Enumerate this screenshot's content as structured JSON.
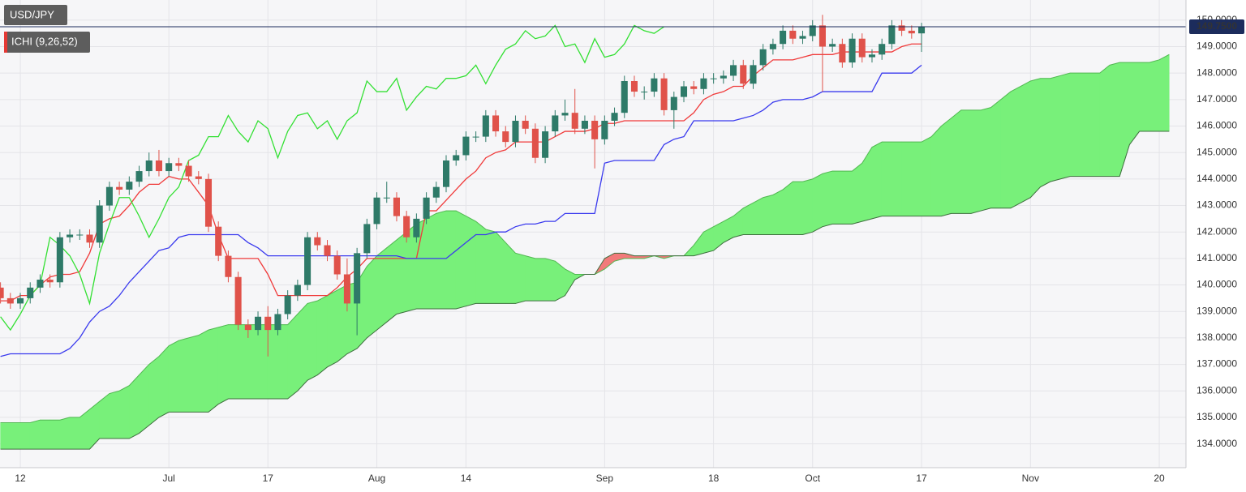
{
  "chart_data": {
    "type": "candlestick",
    "symbol": "USD/JPY",
    "indicator": "ICHI (9,26,52)",
    "categories": [
      null,
      null,
      "12",
      null,
      null,
      null,
      null,
      null,
      null,
      null,
      null,
      null,
      null,
      null,
      null,
      null,
      null,
      "Jul",
      null,
      null,
      null,
      null,
      null,
      null,
      null,
      null,
      null,
      "17",
      null,
      null,
      null,
      null,
      null,
      null,
      null,
      null,
      null,
      null,
      "Aug",
      null,
      null,
      null,
      null,
      null,
      null,
      null,
      null,
      "14",
      null,
      null,
      null,
      null,
      null,
      null,
      null,
      null,
      null,
      null,
      null,
      null,
      null,
      "Sep",
      null,
      null,
      null,
      null,
      null,
      null,
      null,
      null,
      null,
      null,
      "18",
      null,
      null,
      null,
      null,
      null,
      null,
      null,
      null,
      null,
      "Oct",
      null,
      null,
      null,
      null,
      null,
      null,
      null,
      null,
      null,
      null,
      "17",
      null,
      null,
      null,
      null,
      null,
      null,
      null,
      null,
      null,
      null,
      "Nov",
      null,
      null,
      null,
      null,
      null,
      null,
      null,
      null,
      null,
      null,
      null,
      null,
      "20",
      null
    ],
    "open": [
      139.9,
      139.5,
      139.3,
      139.5,
      139.9,
      140.2,
      140.1,
      141.8,
      141.9,
      141.9,
      141.6,
      143.0,
      143.7,
      143.6,
      143.9,
      144.3,
      144.7,
      144.3,
      144.6,
      144.5,
      144.1,
      144.0,
      142.2,
      141.1,
      140.3,
      138.5,
      138.3,
      138.8,
      138.3,
      138.9,
      139.6,
      140.0,
      141.8,
      141.5,
      141.1,
      140.4,
      139.3,
      141.2,
      142.3,
      143.3,
      143.3,
      142.6,
      141.8,
      142.5,
      143.3,
      143.7,
      144.7,
      144.9,
      145.6,
      145.6,
      146.4,
      145.8,
      145.4,
      146.2,
      145.9,
      144.8,
      145.8,
      146.4,
      146.5,
      145.9,
      146.2,
      145.5,
      146.2,
      146.5,
      147.7,
      147.3,
      147.3,
      147.8,
      146.6,
      147.1,
      147.5,
      147.4,
      147.8,
      147.8,
      147.9,
      148.3,
      147.6,
      148.3,
      148.9,
      149.1,
      149.6,
      149.3,
      149.4,
      149.8,
      149.0,
      149.1,
      148.4,
      149.3,
      148.6,
      148.7,
      149.1,
      149.8,
      149.6,
      149.5,
      null,
      null,
      null,
      null,
      null,
      null,
      null,
      null,
      null,
      null,
      null,
      null,
      null,
      null,
      null,
      null,
      null,
      null,
      null,
      null,
      null,
      null,
      null,
      null,
      null
    ],
    "high": [
      140.1,
      139.7,
      139.7,
      140.1,
      140.4,
      140.4,
      142.0,
      142.1,
      142.1,
      142.1,
      143.2,
      143.9,
      143.9,
      144.1,
      144.5,
      145.0,
      145.1,
      144.8,
      144.8,
      144.7,
      144.3,
      144.2,
      142.4,
      141.3,
      140.5,
      138.7,
      139.0,
      139.2,
      139.1,
      139.8,
      140.2,
      142.0,
      142.0,
      141.7,
      141.3,
      141.0,
      141.4,
      142.5,
      143.5,
      143.9,
      143.5,
      142.8,
      142.7,
      143.5,
      143.9,
      144.9,
      145.1,
      145.8,
      145.8,
      146.6,
      146.6,
      146.0,
      146.4,
      146.4,
      146.1,
      146.0,
      146.6,
      147.0,
      147.4,
      146.4,
      146.4,
      146.4,
      146.7,
      147.9,
      147.9,
      147.5,
      148.0,
      148.0,
      147.3,
      147.7,
      147.7,
      148.0,
      148.0,
      148.1,
      148.5,
      148.5,
      148.5,
      149.1,
      149.3,
      149.8,
      149.8,
      149.6,
      150.0,
      150.2,
      149.3,
      149.3,
      149.5,
      149.5,
      148.9,
      149.3,
      150.0,
      150.0,
      149.8,
      149.9,
      null,
      null,
      null,
      null,
      null,
      null,
      null,
      null,
      null,
      null,
      null,
      null,
      null,
      null,
      null,
      null,
      null,
      null,
      null,
      null,
      null,
      null,
      null,
      null,
      null
    ],
    "low": [
      139.3,
      139.1,
      139.1,
      139.3,
      139.7,
      139.9,
      139.9,
      141.6,
      141.7,
      141.4,
      141.4,
      142.8,
      143.4,
      143.4,
      143.7,
      144.1,
      144.1,
      144.1,
      144.3,
      143.9,
      143.8,
      142.0,
      140.9,
      140.1,
      138.3,
      138.0,
      138.1,
      137.3,
      138.1,
      138.7,
      139.4,
      139.8,
      141.3,
      140.9,
      140.2,
      139.0,
      138.1,
      141.0,
      142.1,
      143.1,
      142.4,
      141.6,
      141.6,
      142.3,
      143.1,
      143.5,
      144.5,
      144.7,
      145.4,
      145.4,
      145.6,
      145.2,
      145.2,
      145.7,
      144.6,
      144.6,
      145.6,
      146.2,
      145.7,
      145.7,
      144.4,
      145.3,
      146.0,
      146.3,
      147.1,
      147.0,
      147.1,
      146.4,
      145.9,
      146.9,
      147.2,
      147.2,
      147.6,
      147.6,
      147.7,
      147.4,
      147.4,
      148.1,
      148.7,
      148.9,
      149.1,
      149.1,
      149.2,
      147.3,
      148.8,
      148.2,
      148.2,
      148.4,
      148.4,
      148.5,
      148.9,
      149.4,
      149.3,
      148.8,
      null,
      null,
      null,
      null,
      null,
      null,
      null,
      null,
      null,
      null,
      null,
      null,
      null,
      null,
      null,
      null,
      null,
      null,
      null,
      null,
      null,
      null,
      null,
      null,
      null
    ],
    "close": [
      139.5,
      139.3,
      139.5,
      139.9,
      140.2,
      140.1,
      141.8,
      141.9,
      141.9,
      141.6,
      143.0,
      143.7,
      143.6,
      143.9,
      144.3,
      144.7,
      144.3,
      144.6,
      144.5,
      144.1,
      144.0,
      142.2,
      141.1,
      140.3,
      138.5,
      138.3,
      138.8,
      138.3,
      138.9,
      139.6,
      140.0,
      141.8,
      141.5,
      141.1,
      140.4,
      139.3,
      141.2,
      142.3,
      143.3,
      143.3,
      142.6,
      141.8,
      142.5,
      143.3,
      143.7,
      144.7,
      144.9,
      145.6,
      145.6,
      146.4,
      145.8,
      145.4,
      146.2,
      145.9,
      144.8,
      145.8,
      146.4,
      146.5,
      145.9,
      146.2,
      145.5,
      146.2,
      146.5,
      147.7,
      147.3,
      147.3,
      147.8,
      146.6,
      147.1,
      147.5,
      147.4,
      147.8,
      147.8,
      147.9,
      148.3,
      147.6,
      148.3,
      148.9,
      149.1,
      149.6,
      149.3,
      149.4,
      149.8,
      149.0,
      149.1,
      148.4,
      149.3,
      148.6,
      148.7,
      149.1,
      149.8,
      149.6,
      149.5,
      149.75,
      null,
      null,
      null,
      null,
      null,
      null,
      null,
      null,
      null,
      null,
      null,
      null,
      null,
      null,
      null,
      null,
      null,
      null,
      null,
      null,
      null,
      null,
      null,
      null,
      null
    ],
    "up_color": "#2e7a68",
    "down_color": "#e0524a",
    "lines": [
      {
        "color": "#f03a3a",
        "values": [
          139.4,
          139.4,
          139.6,
          139.6,
          140.0,
          140.3,
          140.4,
          140.4,
          140.5,
          141.2,
          142.3,
          142.5,
          142.6,
          143.0,
          143.5,
          143.8,
          143.8,
          144.1,
          144.0,
          144.0,
          143.5,
          143.0,
          141.9,
          141.0,
          141.0,
          141.0,
          141.0,
          140.4,
          139.6,
          139.6,
          139.6,
          139.6,
          139.6,
          139.6,
          139.9,
          140.3,
          140.6,
          141.0,
          141.0,
          141.0,
          141.0,
          141.0,
          141.0,
          142.8,
          142.8,
          143.2,
          143.6,
          144.0,
          144.3,
          144.8,
          145.0,
          145.1,
          145.4,
          145.4,
          145.4,
          145.4,
          145.6,
          145.8,
          145.8,
          145.8,
          145.9,
          146.1,
          146.1,
          146.2,
          146.2,
          146.2,
          146.2,
          146.2,
          146.2,
          146.2,
          146.5,
          147.0,
          147.2,
          147.3,
          147.5,
          147.5,
          147.9,
          148.2,
          148.5,
          148.5,
          148.5,
          148.6,
          148.7,
          148.7,
          148.7,
          148.8,
          148.8,
          148.8,
          148.8,
          148.8,
          148.8,
          149.0,
          149.1,
          149.1,
          null,
          null,
          null,
          null,
          null,
          null,
          null,
          null,
          null,
          null,
          null,
          null,
          null,
          null,
          null,
          null,
          null,
          null,
          null,
          null,
          null,
          null,
          null,
          null,
          null
        ]
      },
      {
        "color": "#3a3aee",
        "values": [
          137.3,
          137.4,
          137.4,
          137.4,
          137.4,
          137.4,
          137.4,
          137.6,
          138.0,
          138.6,
          139.0,
          139.2,
          139.6,
          140.1,
          140.5,
          140.9,
          141.3,
          141.4,
          141.8,
          141.9,
          141.9,
          141.9,
          141.9,
          141.9,
          141.9,
          141.6,
          141.4,
          141.1,
          141.1,
          141.1,
          141.1,
          141.1,
          141.1,
          141.1,
          141.1,
          141.1,
          141.1,
          141.1,
          141.1,
          141.1,
          141.1,
          141.0,
          141.0,
          141.0,
          141.0,
          141.0,
          141.3,
          141.6,
          141.9,
          141.9,
          142.0,
          142.0,
          142.2,
          142.3,
          142.3,
          142.4,
          142.4,
          142.7,
          142.7,
          142.7,
          142.7,
          144.6,
          144.7,
          144.7,
          144.7,
          144.7,
          144.7,
          145.3,
          145.5,
          145.6,
          146.2,
          146.2,
          146.2,
          146.2,
          146.2,
          146.3,
          146.4,
          146.6,
          146.9,
          147.0,
          147.0,
          147.0,
          147.1,
          147.3,
          147.3,
          147.3,
          147.3,
          147.3,
          147.3,
          148.0,
          148.0,
          148.0,
          148.0,
          148.3,
          null,
          null,
          null,
          null,
          null,
          null,
          null,
          null,
          null,
          null,
          null,
          null,
          null,
          null,
          null,
          null,
          null,
          null,
          null,
          null,
          null,
          null,
          null,
          null,
          null
        ]
      },
      {
        "color": "#33e033",
        "values": [
          138.8,
          138.3,
          138.9,
          139.6,
          140.0,
          141.8,
          141.5,
          141.1,
          140.4,
          139.3,
          141.2,
          142.3,
          143.3,
          143.3,
          142.6,
          141.8,
          142.5,
          143.3,
          143.7,
          144.7,
          144.9,
          145.6,
          145.6,
          146.4,
          145.8,
          145.4,
          146.2,
          145.9,
          144.8,
          145.8,
          146.4,
          146.5,
          145.9,
          146.2,
          145.5,
          146.2,
          146.5,
          147.7,
          147.3,
          147.3,
          147.8,
          146.6,
          147.1,
          147.5,
          147.4,
          147.8,
          147.8,
          147.9,
          148.3,
          147.6,
          148.3,
          148.9,
          149.1,
          149.6,
          149.3,
          149.4,
          149.8,
          149.0,
          149.1,
          148.4,
          149.3,
          148.6,
          148.7,
          149.1,
          149.8,
          149.6,
          149.5,
          149.75,
          null,
          null,
          null,
          null,
          null,
          null,
          null,
          null,
          null,
          null,
          null,
          null,
          null,
          null,
          null,
          null,
          null,
          null,
          null,
          null,
          null,
          null,
          null,
          null,
          null,
          null,
          null,
          null,
          null,
          null,
          null,
          null,
          null,
          null,
          null,
          null,
          null,
          null,
          null,
          null,
          null,
          null,
          null,
          null,
          null
        ]
      }
    ],
    "cloud": {
      "up_color": "#78f07a",
      "down_color": "#f27a7a",
      "span_a": [
        134.8,
        134.8,
        134.8,
        134.8,
        134.9,
        134.9,
        134.9,
        135.0,
        135.0,
        135.3,
        135.6,
        135.9,
        136.0,
        136.2,
        136.6,
        137.0,
        137.3,
        137.7,
        137.9,
        138.0,
        138.1,
        138.3,
        138.4,
        138.5,
        138.5,
        138.5,
        138.5,
        138.5,
        138.5,
        138.5,
        138.9,
        139.3,
        139.4,
        139.6,
        139.8,
        140.0,
        140.1,
        140.7,
        141.1,
        141.4,
        141.7,
        142.0,
        142.3,
        142.5,
        142.7,
        142.8,
        142.8,
        142.6,
        142.4,
        142.1,
        142.0,
        141.6,
        141.2,
        141.1,
        141.0,
        141.0,
        140.9,
        140.6,
        140.4,
        140.4,
        140.4,
        140.6,
        140.9,
        141.0,
        141.0,
        141.0,
        141.1,
        141.0,
        141.1,
        141.1,
        141.5,
        142.0,
        142.2,
        142.4,
        142.6,
        142.9,
        143.1,
        143.3,
        143.4,
        143.6,
        143.9,
        143.9,
        144.0,
        144.2,
        144.3,
        144.3,
        144.3,
        144.6,
        145.2,
        145.4,
        145.4,
        145.4,
        145.4,
        145.4,
        145.6,
        146.0,
        146.3,
        146.6,
        146.6,
        146.6,
        146.7,
        147.0,
        147.3,
        147.5,
        147.7,
        147.8,
        147.8,
        147.9,
        148.0,
        148.0,
        148.0,
        148.0,
        148.3,
        148.4,
        148.4,
        148.4,
        148.4,
        148.5,
        148.7
      ],
      "span_b": [
        133.8,
        133.8,
        133.8,
        133.8,
        133.8,
        133.8,
        133.8,
        133.8,
        133.8,
        133.8,
        134.2,
        134.2,
        134.2,
        134.2,
        134.4,
        134.7,
        135.0,
        135.2,
        135.2,
        135.2,
        135.2,
        135.2,
        135.5,
        135.7,
        135.7,
        135.7,
        135.7,
        135.7,
        135.7,
        135.7,
        136.0,
        136.4,
        136.6,
        136.9,
        137.1,
        137.4,
        137.6,
        138.0,
        138.3,
        138.6,
        138.9,
        139.0,
        139.1,
        139.1,
        139.1,
        139.1,
        139.1,
        139.2,
        139.3,
        139.3,
        139.3,
        139.3,
        139.3,
        139.4,
        139.4,
        139.4,
        139.4,
        139.6,
        140.2,
        140.4,
        140.4,
        141.0,
        141.2,
        141.2,
        141.1,
        141.1,
        141.1,
        141.1,
        141.1,
        141.1,
        141.1,
        141.2,
        141.3,
        141.6,
        141.8,
        141.9,
        141.9,
        141.9,
        141.9,
        141.9,
        141.9,
        141.9,
        142.0,
        142.2,
        142.3,
        142.3,
        142.3,
        142.4,
        142.5,
        142.6,
        142.6,
        142.6,
        142.6,
        142.6,
        142.6,
        142.6,
        142.7,
        142.7,
        142.7,
        142.8,
        142.9,
        142.9,
        142.9,
        143.1,
        143.3,
        143.7,
        143.9,
        144.0,
        144.1,
        144.1,
        144.1,
        144.1,
        144.1,
        144.1,
        145.3,
        145.8,
        145.8,
        145.8,
        145.8
      ]
    },
    "last": {
      "value": 149.75,
      "label": "149.7500"
    },
    "ylim": [
      133.1,
      150.76
    ],
    "yticks": [
      {
        "value": 134,
        "label": "134.0000"
      },
      {
        "value": 135,
        "label": "135.0000"
      },
      {
        "value": 136,
        "label": "136.0000"
      },
      {
        "value": 137,
        "label": "137.0000"
      },
      {
        "value": 138,
        "label": "138.0000"
      },
      {
        "value": 139,
        "label": "139.0000"
      },
      {
        "value": 140,
        "label": "140.0000"
      },
      {
        "value": 141,
        "label": "141.0000"
      },
      {
        "value": 142,
        "label": "142.0000"
      },
      {
        "value": 143,
        "label": "143.0000"
      },
      {
        "value": 144,
        "label": "144.0000"
      },
      {
        "value": 145,
        "label": "145.0000"
      },
      {
        "value": 146,
        "label": "146.0000"
      },
      {
        "value": 147,
        "label": "147.0000"
      },
      {
        "value": 148,
        "label": "148.0000"
      },
      {
        "value": 149,
        "label": "149.0000"
      },
      {
        "value": 150,
        "label": "150.0000"
      }
    ],
    "grid": true
  }
}
